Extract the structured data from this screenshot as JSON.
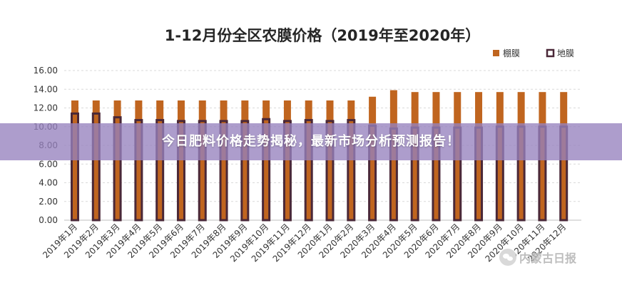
{
  "chart_data": {
    "type": "bar",
    "title": "1-12月份全区农膜价格（2019年至2020年）",
    "categories": [
      "2019年1月",
      "2019年2月",
      "2019年3月",
      "2019年4月",
      "2019年5月",
      "2019年6月",
      "2019年7月",
      "2019年8月",
      "2019年9月",
      "2019年10月",
      "2019年11月",
      "2019年12月",
      "2020年1月",
      "2020年2月",
      "2020年3月",
      "2020年4月",
      "2020年5月",
      "2020年6月",
      "2020年7月",
      "2020年8月",
      "2020年9月",
      "2020年10月",
      "2020年11月",
      "2020年12月"
    ],
    "series": [
      {
        "name": "棚膜",
        "color": "#c0651f",
        "values": [
          12.8,
          12.8,
          12.8,
          12.8,
          12.8,
          12.8,
          12.8,
          12.8,
          12.8,
          12.8,
          12.8,
          12.8,
          12.8,
          12.8,
          13.2,
          13.9,
          13.7,
          13.7,
          13.7,
          13.7,
          13.7,
          13.7,
          13.7,
          13.7
        ]
      },
      {
        "name": "地膜",
        "color": "#4a2838",
        "values": [
          11.4,
          11.4,
          11.0,
          10.7,
          10.7,
          10.6,
          10.6,
          10.6,
          10.6,
          10.8,
          10.6,
          10.7,
          10.6,
          10.7,
          10.1,
          9.8,
          9.9,
          9.9,
          9.9,
          9.9,
          10.0,
          10.0,
          10.0,
          10.0
        ]
      }
    ],
    "ylim": [
      0,
      16
    ],
    "yticks": [
      "0.00",
      "2.00",
      "4.00",
      "6.00",
      "8.00",
      "10.00",
      "12.00",
      "14.00",
      "16.00"
    ],
    "legend_position": "top-right",
    "grid": true
  },
  "banner": {
    "text": "今日肥料价格走势揭秘，最新市场分析预测报告！"
  },
  "watermark": {
    "text": "内蒙古日报",
    "icon": "wechat-icon"
  }
}
